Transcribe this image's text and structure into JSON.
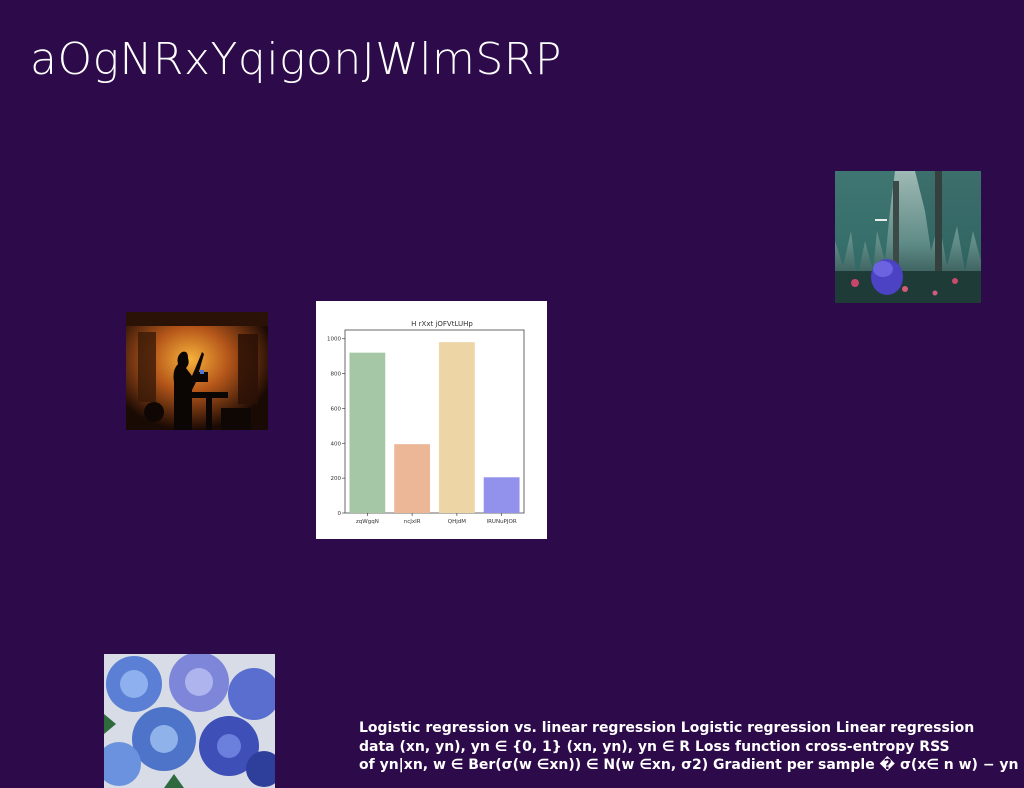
{
  "slide": {
    "title": "aOgNRxYqigonJWlmSRP",
    "background": "#2d0a49"
  },
  "images": {
    "stage": "silhouette-of-performer-on-stage",
    "forest": "willow-trees-with-blue-chair",
    "flowers": "blue-dahlia-flowers"
  },
  "caption": {
    "lines": [
      "Logistic regression vs. linear regression Logistic regression Linear regression",
      "data (xn, yn), yn ∈ {0, 1} (xn, yn), yn ∈ R Loss function cross-entropy RSS",
      "of yn|xn, w ∈ Ber(σ(w ∈xn)) ∈ N(w ∈xn, σ2) Gradient per sample � σ(x∈ n w) − yn"
    ]
  },
  "chart_data": {
    "type": "bar",
    "title": "H rXxt jOFVtLUHp",
    "categories": [
      "zqWgqN",
      "ncJxIR",
      "QHjdM",
      "lRUNuPJOR"
    ],
    "values": [
      920,
      395,
      980,
      205
    ],
    "colors": [
      "#a5c7a6",
      "#ebb797",
      "#edd5a6",
      "#9292ec"
    ],
    "ylim": [
      0,
      1050
    ],
    "yticks": [
      0,
      200,
      400,
      600,
      800,
      1000
    ],
    "xlabel": "",
    "ylabel": "",
    "grid": false
  }
}
